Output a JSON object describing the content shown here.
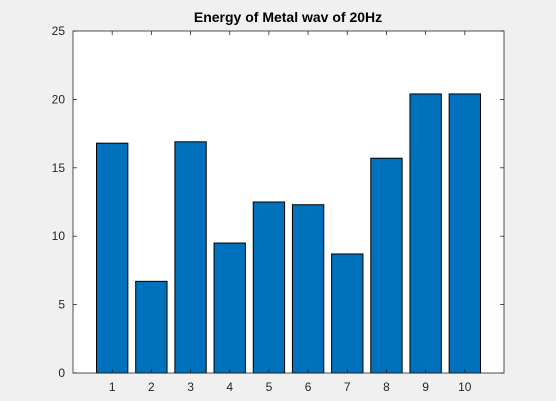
{
  "chart_data": {
    "type": "bar",
    "title": "Energy of Metal wav of 20Hz",
    "xlabel": "",
    "ylabel": "",
    "categories": [
      "1",
      "2",
      "3",
      "4",
      "5",
      "6",
      "7",
      "8",
      "9",
      "10"
    ],
    "values": [
      16.8,
      6.7,
      16.9,
      9.5,
      12.5,
      12.3,
      8.7,
      15.7,
      20.4,
      20.4
    ],
    "ylim": [
      0,
      25
    ],
    "yticks": [
      "0",
      "5",
      "10",
      "15",
      "20",
      "25"
    ],
    "grid": false,
    "legend": "none",
    "colors": {
      "bar_fill": "#0072BD",
      "bar_edge": "#000000",
      "axes_bg": "#ffffff",
      "figure_bg": "#f0f0f0",
      "axis_line": "#262626"
    }
  }
}
